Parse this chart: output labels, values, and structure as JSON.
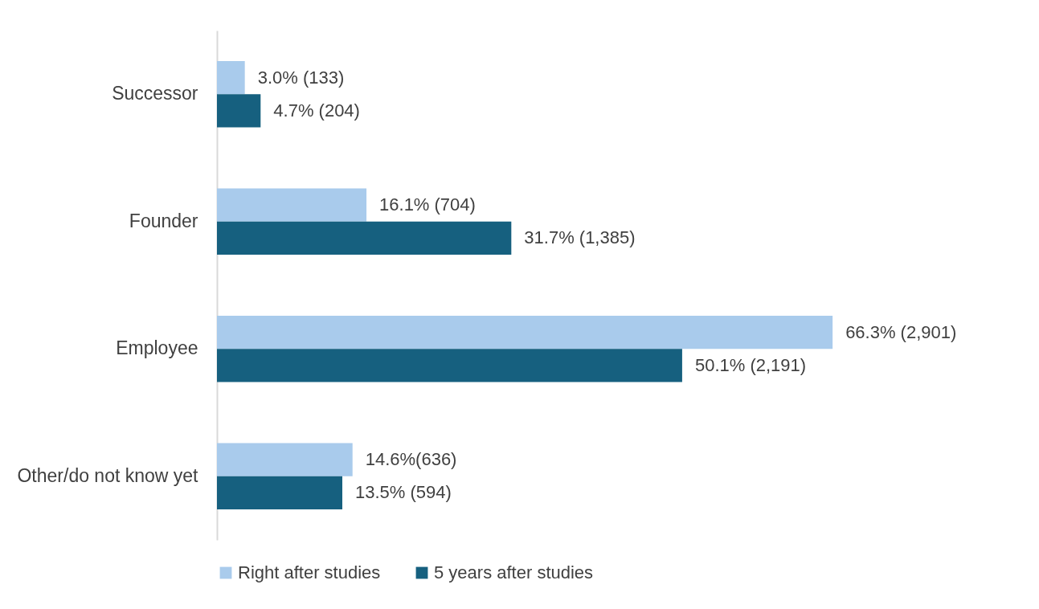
{
  "chart_data": {
    "type": "bar",
    "orientation": "horizontal",
    "categories": [
      "Successor",
      "Founder",
      "Employee",
      "Other/do not know yet"
    ],
    "series": [
      {
        "name": "Right after studies",
        "color": "#a9cbec",
        "values": [
          3.0,
          16.1,
          66.3,
          14.6
        ],
        "value_labels": [
          "3.0% (133)",
          "16.1% (704)",
          "66.3% (2,901)",
          "14.6%(636)"
        ]
      },
      {
        "name": "5 years after studies",
        "color": "#16607f",
        "values": [
          4.7,
          31.7,
          50.1,
          13.5
        ],
        "value_labels": [
          "4.7% (204)",
          "31.7% (1,385)",
          "50.1% (2,191)",
          "13.5% (594)"
        ]
      }
    ],
    "legend": "bottom"
  }
}
